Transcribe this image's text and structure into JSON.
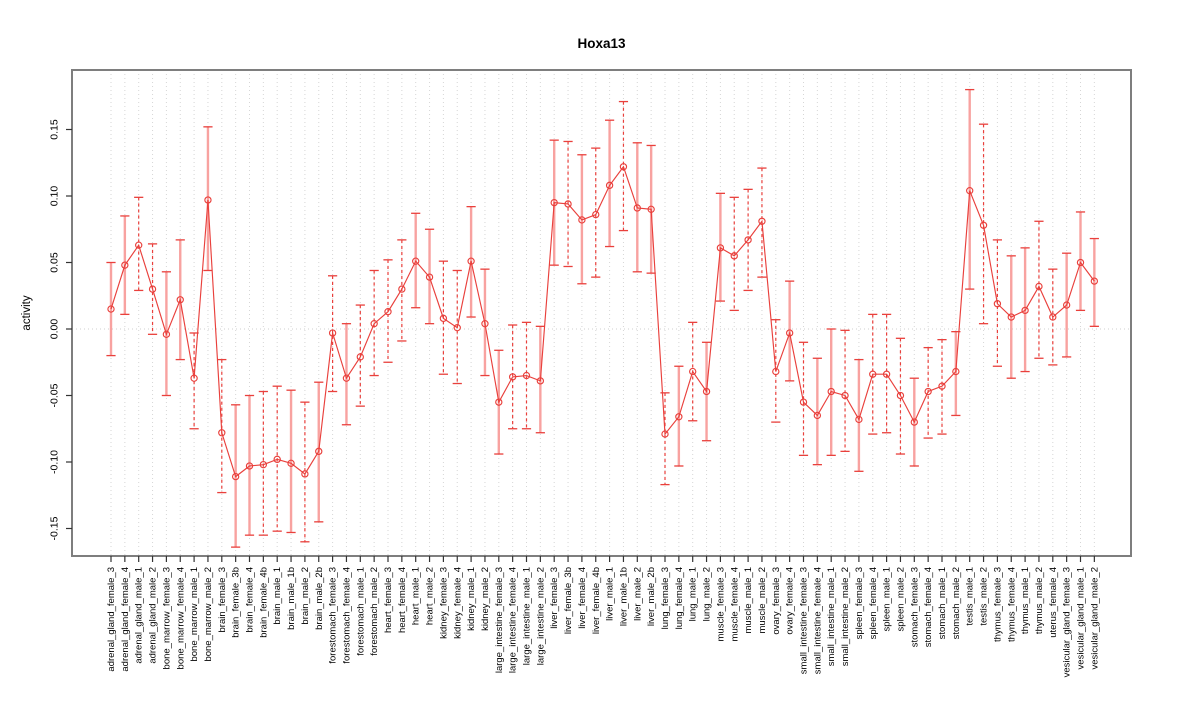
{
  "page": {
    "title": "Hoxa13"
  },
  "chart_data": {
    "type": "scatter",
    "subtype": "point-estimates-with-error-bars",
    "title": "Hoxa13",
    "xlabel": "",
    "ylabel": "activity",
    "ylim": [
      -0.172,
      0.196
    ],
    "yticks": [
      -0.15,
      -0.1,
      -0.05,
      0.0,
      0.05,
      0.1,
      0.15
    ],
    "grid": "dotted-vertical-per-category-and-dotted-zero-line",
    "legend": "none",
    "marker": "open-circle",
    "colors": {
      "series": "#e9403c",
      "stem_solid": "#f8a2a0",
      "stem_dashed": "#e9403c",
      "grid": "#d6d6d6",
      "zero_line": "#cfcfcf",
      "frame": "#7e7e7e",
      "text": "#000000"
    },
    "categories": [
      "adrenal_gland_female_3",
      "adrenal_gland_female_4",
      "adrenal_gland_male_1",
      "adrenal_gland_male_2",
      "bone_marrow_female_3",
      "bone_marrow_female_4",
      "bone_marrow_male_1",
      "bone_marrow_male_2",
      "brain_female_3",
      "brain_female_3b",
      "brain_female_4",
      "brain_female_4b",
      "brain_male_1",
      "brain_male_1b",
      "brain_male_2",
      "brain_male_2b",
      "forestomach_female_3",
      "forestomach_female_4",
      "forestomach_male_1",
      "forestomach_male_2",
      "heart_female_3",
      "heart_female_4",
      "heart_male_1",
      "heart_male_2",
      "kidney_female_3",
      "kidney_female_4",
      "kidney_male_1",
      "kidney_male_2",
      "large_intestine_female_3",
      "large_intestine_female_4",
      "large_intestine_male_1",
      "large_intestine_male_2",
      "liver_female_3",
      "liver_female_3b",
      "liver_female_4",
      "liver_female_4b",
      "liver_male_1",
      "liver_male_1b",
      "liver_male_2",
      "liver_male_2b",
      "lung_female_3",
      "lung_female_4",
      "lung_male_1",
      "lung_male_2",
      "muscle_female_3",
      "muscle_female_4",
      "muscle_male_1",
      "muscle_male_2",
      "ovary_female_3",
      "ovary_female_4",
      "small_intestine_female_3",
      "small_intestine_female_4",
      "small_intestine_male_1",
      "small_intestine_male_2",
      "spleen_female_3",
      "spleen_female_4",
      "spleen_male_1",
      "spleen_male_2",
      "stomach_female_3",
      "stomach_female_4",
      "stomach_male_1",
      "stomach_male_2",
      "testis_male_1",
      "testis_male_2",
      "thymus_female_3",
      "thymus_female_4",
      "thymus_male_1",
      "thymus_male_2",
      "uterus_female_4",
      "vesicular_gland_female_3",
      "vesicular_gland_male_1",
      "vesicular_gland_male_2"
    ],
    "series": [
      {
        "name": "activity",
        "values": [
          0.015,
          0.048,
          0.063,
          0.03,
          -0.004,
          0.022,
          -0.037,
          0.097,
          -0.078,
          -0.111,
          -0.103,
          -0.102,
          -0.098,
          -0.101,
          -0.109,
          -0.092,
          -0.003,
          -0.037,
          -0.021,
          0.004,
          0.013,
          0.03,
          0.051,
          0.039,
          0.008,
          0.001,
          0.051,
          0.004,
          -0.055,
          -0.036,
          -0.035,
          -0.039,
          0.095,
          0.094,
          0.082,
          0.086,
          0.108,
          0.122,
          0.091,
          0.09,
          -0.079,
          -0.066,
          -0.032,
          -0.047,
          0.061,
          0.055,
          0.067,
          0.081,
          -0.032,
          -0.003,
          -0.055,
          -0.065,
          -0.047,
          -0.05,
          -0.068,
          -0.034,
          -0.034,
          -0.05,
          -0.07,
          -0.047,
          -0.043,
          -0.032,
          0.104,
          0.078,
          0.019,
          0.009,
          0.014,
          0.032,
          0.009,
          0.018,
          0.05,
          0.036
        ],
        "ci_low": [
          -0.02,
          0.011,
          0.029,
          -0.004,
          -0.05,
          -0.023,
          -0.075,
          0.044,
          -0.123,
          -0.164,
          -0.155,
          -0.155,
          -0.152,
          -0.153,
          -0.16,
          -0.145,
          -0.047,
          -0.072,
          -0.058,
          -0.035,
          -0.025,
          -0.009,
          0.016,
          0.004,
          -0.034,
          -0.041,
          0.009,
          -0.035,
          -0.094,
          -0.075,
          -0.075,
          -0.078,
          0.048,
          0.047,
          0.034,
          0.039,
          0.062,
          0.074,
          0.043,
          0.042,
          -0.117,
          -0.103,
          -0.069,
          -0.084,
          0.021,
          0.014,
          0.029,
          0.039,
          -0.07,
          -0.039,
          -0.095,
          -0.102,
          -0.095,
          -0.092,
          -0.107,
          -0.079,
          -0.078,
          -0.094,
          -0.103,
          -0.082,
          -0.079,
          -0.065,
          0.03,
          0.004,
          -0.028,
          -0.037,
          -0.032,
          -0.022,
          -0.027,
          -0.021,
          0.014,
          0.002
        ],
        "ci_high": [
          0.05,
          0.085,
          0.099,
          0.064,
          0.043,
          0.067,
          -0.003,
          0.152,
          -0.023,
          -0.057,
          -0.05,
          -0.047,
          -0.043,
          -0.046,
          -0.055,
          -0.04,
          0.04,
          0.004,
          0.018,
          0.044,
          0.052,
          0.067,
          0.087,
          0.075,
          0.051,
          0.044,
          0.092,
          0.045,
          -0.016,
          0.003,
          0.005,
          0.002,
          0.142,
          0.141,
          0.131,
          0.136,
          0.157,
          0.171,
          0.14,
          0.138,
          -0.048,
          -0.028,
          0.005,
          -0.01,
          0.102,
          0.099,
          0.105,
          0.121,
          0.007,
          0.036,
          -0.01,
          -0.022,
          0.0,
          -0.001,
          -0.023,
          0.011,
          0.011,
          -0.007,
          -0.037,
          -0.014,
          -0.008,
          -0.002,
          0.18,
          0.154,
          0.067,
          0.055,
          0.061,
          0.081,
          0.045,
          0.057,
          0.088,
          0.068
        ],
        "stem_style": [
          "s",
          "s",
          "d",
          "d",
          "s",
          "s",
          "d",
          "s",
          "d",
          "s",
          "s",
          "d",
          "d",
          "s",
          "d",
          "s",
          "d",
          "s",
          "d",
          "d",
          "d",
          "d",
          "s",
          "s",
          "d",
          "d",
          "s",
          "s",
          "s",
          "d",
          "d",
          "s",
          "s",
          "d",
          "s",
          "d",
          "s",
          "d",
          "s",
          "s",
          "d",
          "s",
          "d",
          "s",
          "s",
          "d",
          "d",
          "d",
          "d",
          "s",
          "d",
          "s",
          "s",
          "d",
          "s",
          "d",
          "d",
          "d",
          "s",
          "d",
          "d",
          "s",
          "s",
          "d",
          "d",
          "s",
          "s",
          "d",
          "d",
          "s",
          "s",
          "s"
        ]
      }
    ]
  }
}
